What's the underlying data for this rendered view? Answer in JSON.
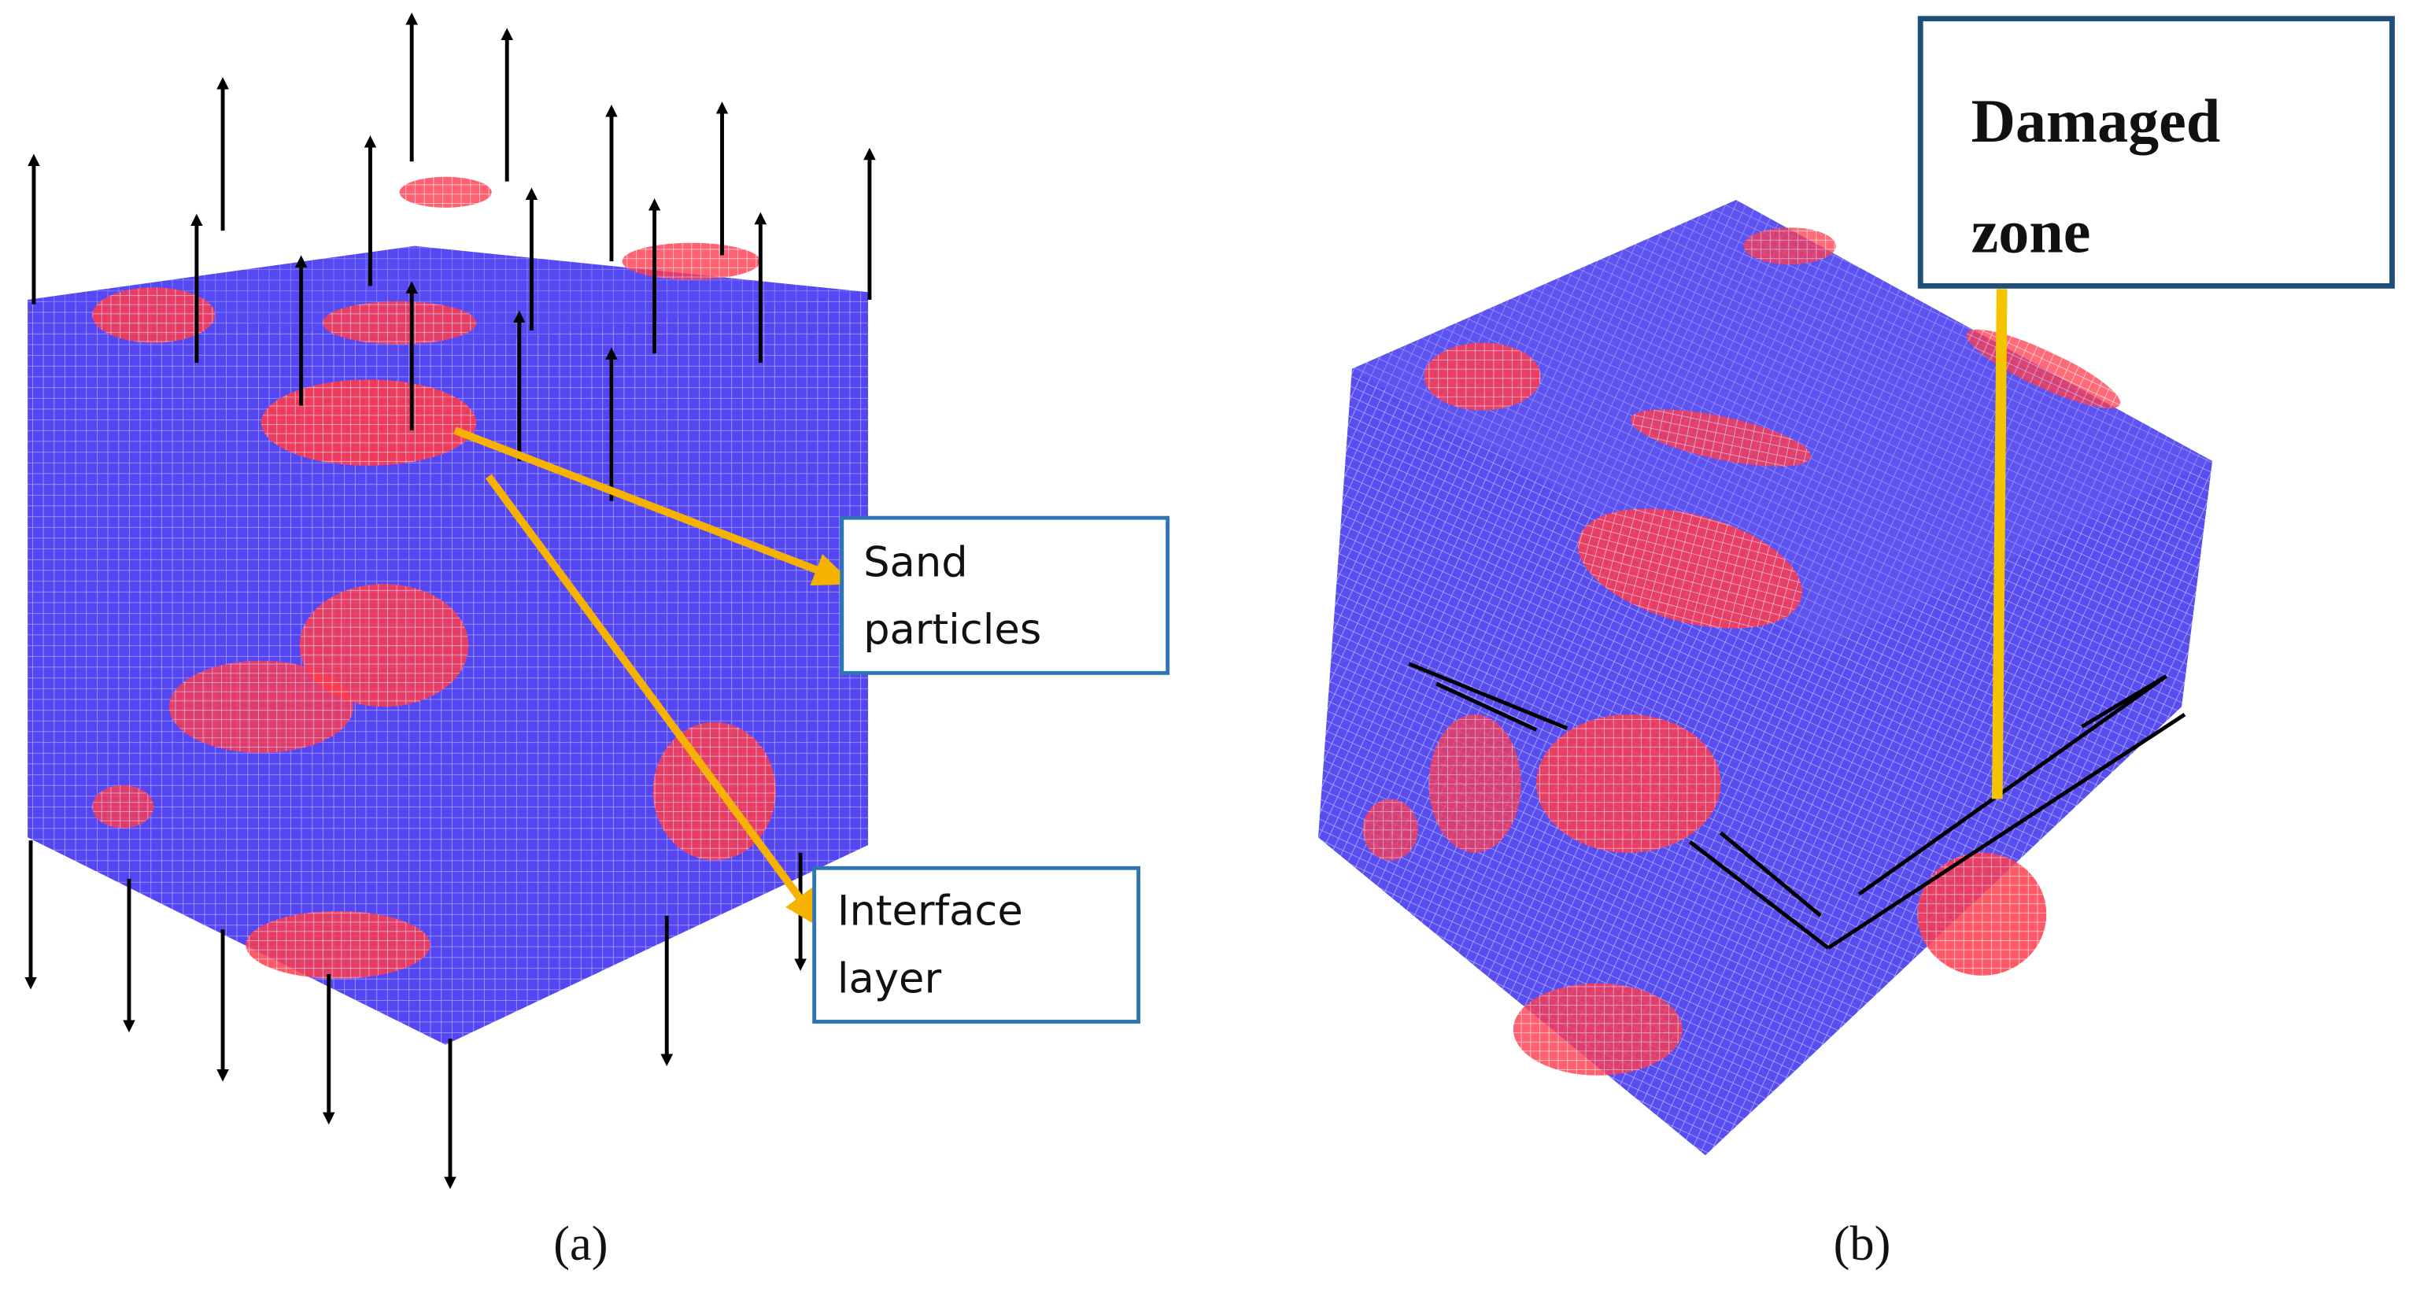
{
  "panels": [
    {
      "caption": "(a)",
      "labels": [
        {
          "lines": [
            "Sand",
            "particles"
          ]
        },
        {
          "lines": [
            "Interface",
            "layer"
          ]
        }
      ]
    },
    {
      "caption": "(b)",
      "labels": [
        {
          "lines": [
            "Damaged",
            "zone"
          ]
        }
      ]
    }
  ]
}
